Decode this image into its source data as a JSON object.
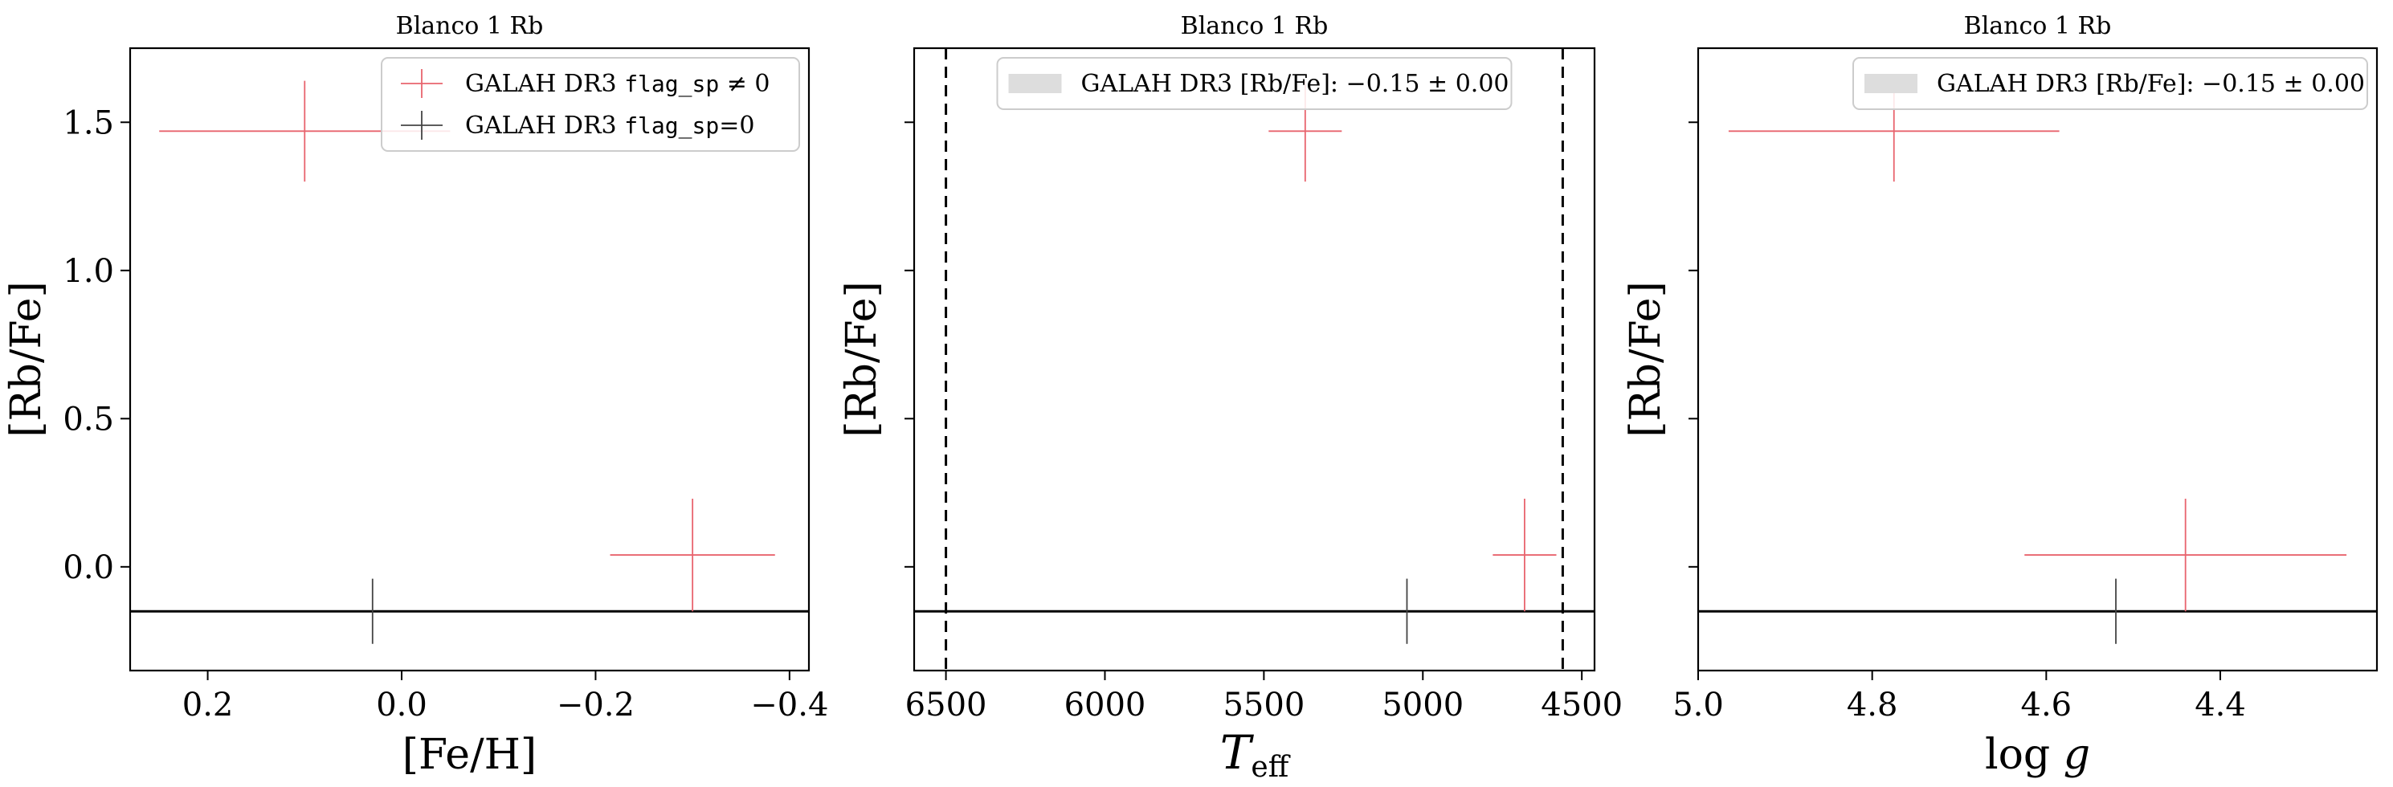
{
  "chart_data": [
    {
      "type": "scatter",
      "title": "Blanco 1 Rb",
      "xlabel": "[Fe/H]",
      "ylabel": "[Rb/Fe]",
      "xlim": [
        0.28,
        -0.42
      ],
      "ylim": [
        -0.35,
        1.75
      ],
      "xticks": [
        0.2,
        0.0,
        -0.2,
        -0.4
      ],
      "xtick_labels": [
        "0.2",
        "0.0",
        "−0.2",
        "−0.4"
      ],
      "yticks": [
        0.0,
        0.5,
        1.0,
        1.5
      ],
      "ytick_labels": [
        "0.0",
        "0.5",
        "1.0",
        "1.5"
      ],
      "show_ytick_labels": true,
      "hline": -0.15,
      "vlines": [],
      "legend": {
        "placement": "top-right",
        "entries": [
          {
            "marker": "cross",
            "color": "#e8646e",
            "text": "GALAH DR3 ",
            "mono": "flag_sp",
            "suffix": " ≠ 0"
          },
          {
            "marker": "cross",
            "color": "#444444",
            "text": "GALAH DR3 ",
            "mono": "flag_sp",
            "suffix": "=0"
          }
        ]
      },
      "points": [
        {
          "x": 0.1,
          "y": 1.47,
          "xerr": 0.15,
          "yerr": 0.17,
          "flagged": true
        },
        {
          "x": -0.3,
          "y": 0.04,
          "xerr": 0.085,
          "yerr": 0.19,
          "flagged": true
        },
        {
          "x": 0.03,
          "y": -0.15,
          "xerr": 0.0,
          "yerr": 0.11,
          "flagged": false
        }
      ]
    },
    {
      "type": "scatter",
      "title": "Blanco 1 Rb",
      "xlabel": "T_eff",
      "ylabel": "[Rb/Fe]",
      "xlim": [
        6600,
        4460
      ],
      "ylim": [
        -0.35,
        1.75
      ],
      "xticks": [
        6500,
        6000,
        5500,
        5000,
        4500
      ],
      "xtick_labels": [
        "6500",
        "6000",
        "5500",
        "5000",
        "4500"
      ],
      "yticks": [
        0.0,
        0.5,
        1.0,
        1.5
      ],
      "ytick_labels": [
        "0.0",
        "0.5",
        "1.0",
        "1.5"
      ],
      "show_ytick_labels": false,
      "hline": -0.15,
      "vlines": [
        6500,
        4560
      ],
      "legend": {
        "placement": "top-center",
        "entries": [
          {
            "marker": "band",
            "color": "#dddddd",
            "text": "GALAH DR3 [Rb/Fe]: −0.15 ± 0.00",
            "mono": "",
            "suffix": ""
          }
        ]
      },
      "points": [
        {
          "x": 5370,
          "y": 1.47,
          "xerr": 115,
          "yerr": 0.17,
          "flagged": true
        },
        {
          "x": 4680,
          "y": 0.04,
          "xerr": 100,
          "yerr": 0.19,
          "flagged": true
        },
        {
          "x": 5050,
          "y": -0.15,
          "xerr": 0,
          "yerr": 0.11,
          "flagged": false
        }
      ]
    },
    {
      "type": "scatter",
      "title": "Blanco 1 Rb",
      "xlabel": "log g",
      "ylabel": "[Rb/Fe]",
      "xlim": [
        5.0,
        4.22
      ],
      "ylim": [
        -0.35,
        1.75
      ],
      "xticks": [
        5.0,
        4.8,
        4.6,
        4.4
      ],
      "xtick_labels": [
        "5.0",
        "4.8",
        "4.6",
        "4.4"
      ],
      "show_ytick_labels": false,
      "yticks": [
        0.0,
        0.5,
        1.0,
        1.5
      ],
      "ytick_labels": [
        "0.0",
        "0.5",
        "1.0",
        "1.5"
      ],
      "hline": -0.15,
      "vlines": [],
      "legend": {
        "placement": "top-right",
        "entries": [
          {
            "marker": "band",
            "color": "#dddddd",
            "text": "GALAH DR3 [Rb/Fe]: −0.15 ± 0.00",
            "mono": "",
            "suffix": ""
          }
        ]
      },
      "points": [
        {
          "x": 4.775,
          "y": 1.47,
          "xerr": 0.19,
          "yerr": 0.17,
          "flagged": true
        },
        {
          "x": 4.44,
          "y": 0.04,
          "xerr": 0.185,
          "yerr": 0.19,
          "flagged": true
        },
        {
          "x": 4.52,
          "y": -0.15,
          "xerr": 0,
          "yerr": 0.11,
          "flagged": false
        }
      ]
    }
  ],
  "colors": {
    "flagged": "#e8646e",
    "unflagged": "#444444",
    "band": "#dddddd",
    "line": "#000000"
  }
}
